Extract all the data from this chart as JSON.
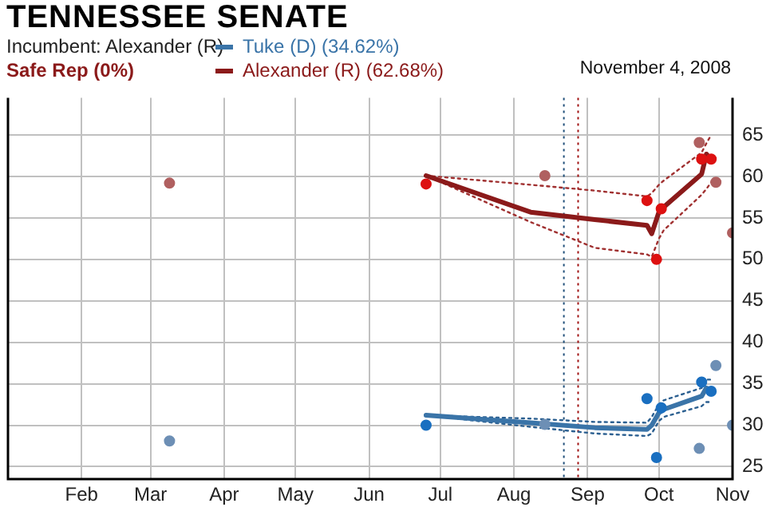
{
  "chart_data": {
    "type": "line",
    "title": "TENNESSEE SENATE",
    "subtitle": "Incumbent: Alexander (R)",
    "annotations": [
      "Safe Rep (0%)",
      "November 4, 2008"
    ],
    "xlim": [
      "2008-01-01",
      "2008-11-01"
    ],
    "xticks": [
      {
        "value": "2008-02-01",
        "label": "Feb"
      },
      {
        "value": "2008-03-01",
        "label": "Mar"
      },
      {
        "value": "2008-04-01",
        "label": "Apr"
      },
      {
        "value": "2008-05-01",
        "label": "May"
      },
      {
        "value": "2008-06-01",
        "label": "Jun"
      },
      {
        "value": "2008-07-01",
        "label": "Jul"
      },
      {
        "value": "2008-08-01",
        "label": "Aug"
      },
      {
        "value": "2008-09-01",
        "label": "Sep"
      },
      {
        "value": "2008-10-01",
        "label": "Oct"
      },
      {
        "value": "2008-11-01",
        "label": "Nov"
      }
    ],
    "ylim": [
      23.5,
      69.5
    ],
    "yticks": [
      25,
      30,
      35,
      40,
      45,
      50,
      55,
      60,
      65
    ],
    "grid": true,
    "legend": "top",
    "line_style": "solid",
    "marker": "none",
    "ref_lines": [
      {
        "axis": "x",
        "value": "2008-08-22",
        "color": "#1f4e79",
        "line_style": "dotted"
      },
      {
        "axis": "x",
        "value": "2008-08-28",
        "color": "#a01010",
        "line_style": "dotted"
      }
    ],
    "series": [
      {
        "name": "Tuke (D) (34.62%)",
        "color": "#3a74a8",
        "x": [
          "2008-06-25",
          "2008-08-08",
          "2008-09-04",
          "2008-09-26",
          "2008-09-28",
          "2008-10-01",
          "2008-10-03",
          "2008-10-19",
          "2008-10-21",
          "2008-10-23"
        ],
        "values": [
          31.2,
          30.3,
          29.7,
          29.5,
          30.0,
          31.5,
          31.9,
          33.5,
          34.5,
          34.1
        ]
      },
      {
        "name": "Alexander (R) (62.68%)",
        "color": "#8b1a1a",
        "x": [
          "2008-06-25",
          "2008-08-08",
          "2008-09-04",
          "2008-09-26",
          "2008-09-28",
          "2008-10-01",
          "2008-10-03",
          "2008-10-19",
          "2008-10-21",
          "2008-10-23"
        ],
        "values": [
          60.1,
          55.7,
          54.8,
          54.1,
          53.1,
          55.7,
          56.3,
          60.3,
          62.7,
          62.0
        ]
      },
      {
        "line_style": "dotted",
        "color": "#2b5f90",
        "x": [
          "2008-06-25",
          "2008-08-08",
          "2008-09-04",
          "2008-09-26",
          "2008-09-28",
          "2008-10-01",
          "2008-10-03",
          "2008-10-19",
          "2008-10-21",
          "2008-10-23"
        ],
        "values": [
          31.2,
          30.8,
          30.4,
          30.3,
          31.0,
          32.5,
          33.0,
          34.5,
          35.5,
          35.5
        ]
      },
      {
        "line_style": "dotted",
        "color": "#2b5f90",
        "x": [
          "2008-06-25",
          "2008-08-08",
          "2008-09-04",
          "2008-09-26",
          "2008-09-28",
          "2008-10-01",
          "2008-10-03",
          "2008-10-19",
          "2008-10-21",
          "2008-10-23"
        ],
        "values": [
          31.2,
          29.8,
          29.0,
          28.7,
          29.0,
          30.5,
          31.0,
          32.3,
          32.8,
          32.8
        ]
      },
      {
        "line_style": "dotted",
        "color": "#a03030",
        "x": [
          "2008-06-25",
          "2008-08-08",
          "2008-09-04",
          "2008-09-26",
          "2008-09-28",
          "2008-10-01",
          "2008-10-03",
          "2008-10-19",
          "2008-10-21",
          "2008-10-23"
        ],
        "values": [
          60.1,
          59.0,
          58.3,
          57.6,
          58.0,
          59.0,
          59.5,
          62.9,
          64.0,
          65.0
        ]
      },
      {
        "line_style": "dotted",
        "color": "#a03030",
        "x": [
          "2008-06-25",
          "2008-08-08",
          "2008-09-04",
          "2008-09-26",
          "2008-09-28",
          "2008-10-01",
          "2008-10-03",
          "2008-10-19",
          "2008-10-21",
          "2008-10-23"
        ],
        "values": [
          60.1,
          54.5,
          51.4,
          50.6,
          50.3,
          52.5,
          53.5,
          57.8,
          58.5,
          59.3
        ]
      },
      {
        "type": "scatter",
        "color": "#1a6fc0",
        "marker": "circle",
        "x": [
          "2008-06-25",
          "2008-09-26",
          "2008-09-30",
          "2008-10-02",
          "2008-10-19",
          "2008-10-23"
        ],
        "values": [
          30.0,
          33.2,
          26.1,
          32.1,
          35.2,
          34.1
        ]
      },
      {
        "type": "scatter",
        "color": "#dd1111",
        "marker": "circle",
        "x": [
          "2008-06-25",
          "2008-09-26",
          "2008-09-30",
          "2008-10-02",
          "2008-10-19",
          "2008-10-23"
        ],
        "values": [
          59.1,
          57.1,
          50.0,
          56.1,
          62.1,
          62.1
        ]
      },
      {
        "type": "scatter",
        "color": "#6d8fb5",
        "marker": "circle",
        "x": [
          "2008-03-09",
          "2008-08-14",
          "2008-10-18",
          "2008-10-25",
          "2008-11-01"
        ],
        "values": [
          28.1,
          30.1,
          27.2,
          37.2,
          30.0
        ]
      },
      {
        "type": "scatter",
        "color": "#b06060",
        "marker": "circle",
        "x": [
          "2008-03-09",
          "2008-08-14",
          "2008-10-18",
          "2008-10-25",
          "2008-11-01"
        ],
        "values": [
          59.2,
          60.1,
          64.1,
          59.3,
          53.2
        ]
      }
    ]
  }
}
